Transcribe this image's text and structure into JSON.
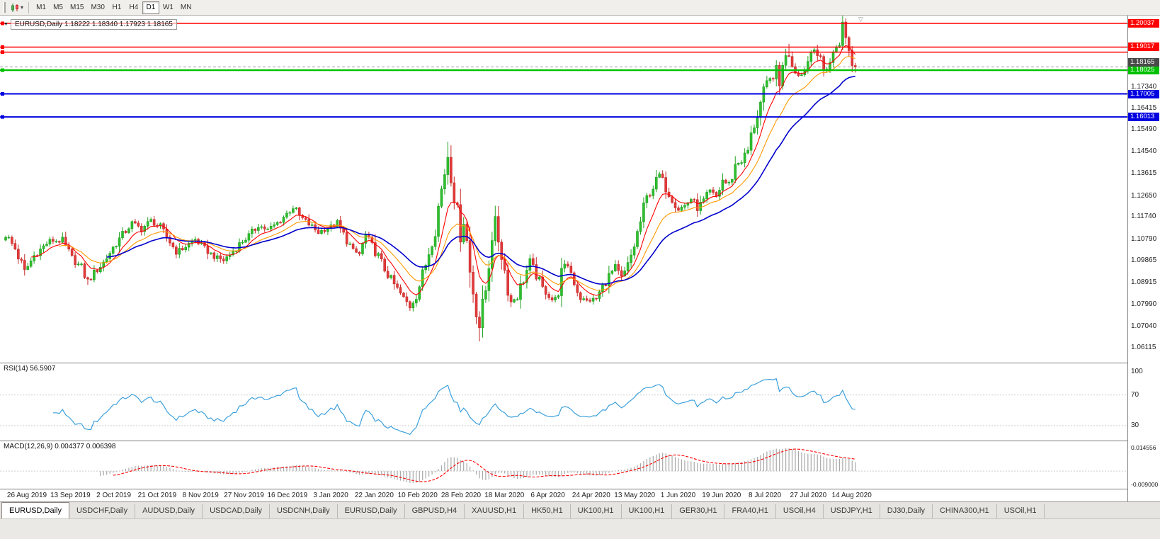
{
  "toolbar": {
    "periods": [
      {
        "label": "M1",
        "active": false
      },
      {
        "label": "M5",
        "active": false
      },
      {
        "label": "M15",
        "active": false
      },
      {
        "label": "M30",
        "active": false
      },
      {
        "label": "H1",
        "active": false
      },
      {
        "label": "H4",
        "active": false
      },
      {
        "label": "D1",
        "active": true
      },
      {
        "label": "W1",
        "active": false
      },
      {
        "label": "MN",
        "active": false
      }
    ]
  },
  "chart": {
    "title": "EURUSD,Daily 1.18222 1.18340 1.17923 1.18165"
  },
  "indicators": {
    "rsi_label": "RSI(14) 56.5907",
    "macd_label": "MACD(12,26,9) 0.004377 0.006398"
  },
  "price_axis": {
    "ticks": [
      "1.17340",
      "1.16415",
      "1.15490",
      "1.14540",
      "1.13615",
      "1.12650",
      "1.11740",
      "1.10790",
      "1.09865",
      "1.08915",
      "1.07990",
      "1.07040",
      "1.06115"
    ]
  },
  "tabbar": {
    "tabs": [
      {
        "label": "EURUSD,Daily",
        "active": true
      },
      {
        "label": "USDCHF,Daily",
        "active": false
      },
      {
        "label": "AUDUSD,Daily",
        "active": false
      },
      {
        "label": "USDCAD,Daily",
        "active": false
      },
      {
        "label": "USDCNH,Daily",
        "active": false
      },
      {
        "label": "EURUSD,Daily",
        "active": false
      },
      {
        "label": "GBPUSD,H4",
        "active": false
      },
      {
        "label": "XAUUSD,H1",
        "active": false
      },
      {
        "label": "HK50,H1",
        "active": false
      },
      {
        "label": "UK100,H1",
        "active": false
      },
      {
        "label": "UK100,H1",
        "active": false
      },
      {
        "label": "GER30,H1",
        "active": false
      },
      {
        "label": "FRA40,H1",
        "active": false
      },
      {
        "label": "USOil,H4",
        "active": false
      },
      {
        "label": "USDJPY,H1",
        "active": false
      },
      {
        "label": "DJ30,Daily",
        "active": false
      },
      {
        "label": "CHINA300,H1",
        "active": false
      },
      {
        "label": "USOil,H1",
        "active": false
      }
    ]
  },
  "chart_data": {
    "type": "candlestick",
    "symbol": "EURUSD",
    "timeframe": "Daily",
    "last_ohlc": {
      "open": 1.18222,
      "high": 1.1834,
      "low": 1.17923,
      "close": 1.18165
    },
    "current_price": 1.18165,
    "current_price_label": "1.18165",
    "y_range": [
      1.05447,
      1.20372
    ],
    "num_candles": 270,
    "x_labels": [
      "26 Aug 2019",
      "13 Sep 2019",
      "2 Oct 2019",
      "21 Oct 2019",
      "8 Nov 2019",
      "27 Nov 2019",
      "16 Dec 2019",
      "3 Jan 2020",
      "22 Jan 2020",
      "10 Feb 2020",
      "28 Feb 2020",
      "18 Mar 2020",
      "6 Apr 2020",
      "24 Apr 2020",
      "13 May 2020",
      "1 Jun 2020",
      "19 Jun 2020",
      "8 Jul 2020",
      "27 Jul 2020",
      "14 Aug 2020"
    ],
    "close_anchors": [
      [
        0,
        1.1095
      ],
      [
        3,
        1.1035
      ],
      [
        6,
        1.0935
      ],
      [
        9,
        1.1005
      ],
      [
        14,
        1.107
      ],
      [
        18,
        1.1065
      ],
      [
        21,
        1.0995
      ],
      [
        24,
        1.095
      ],
      [
        26,
        1.0895
      ],
      [
        28,
        1.093
      ],
      [
        31,
        1.0975
      ],
      [
        34,
        1.104
      ],
      [
        37,
        1.1095
      ],
      [
        40,
        1.1145
      ],
      [
        43,
        1.112
      ],
      [
        46,
        1.1155
      ],
      [
        49,
        1.1125
      ],
      [
        52,
        1.1065
      ],
      [
        54,
        1.102
      ],
      [
        56,
        1.1035
      ],
      [
        58,
        1.1055
      ],
      [
        60,
        1.1075
      ],
      [
        63,
        1.1035
      ],
      [
        66,
        1.1
      ],
      [
        69,
        1.0985
      ],
      [
        71,
        1.101
      ],
      [
        74,
        1.1055
      ],
      [
        77,
        1.109
      ],
      [
        80,
        1.1135
      ],
      [
        83,
        1.1115
      ],
      [
        86,
        1.1145
      ],
      [
        89,
        1.1185
      ],
      [
        91,
        1.1215
      ],
      [
        93,
        1.1175
      ],
      [
        96,
        1.114
      ],
      [
        99,
        1.1105
      ],
      [
        102,
        1.1125
      ],
      [
        105,
        1.114
      ],
      [
        107,
        1.1095
      ],
      [
        110,
        1.1025
      ],
      [
        112,
        1.101
      ],
      [
        114,
        1.109
      ],
      [
        116,
        1.1045
      ],
      [
        118,
        1.1
      ],
      [
        120,
        1.0945
      ],
      [
        123,
        1.088
      ],
      [
        126,
        1.082
      ],
      [
        128,
        1.0788
      ],
      [
        130,
        1.084
      ],
      [
        132,
        1.0915
      ],
      [
        134,
        1.1025
      ],
      [
        136,
        1.1135
      ],
      [
        138,
        1.129
      ],
      [
        140,
        1.1445
      ],
      [
        141,
        1.136
      ],
      [
        142,
        1.1285
      ],
      [
        143,
        1.118
      ],
      [
        144,
        1.1105
      ],
      [
        145,
        1.118
      ],
      [
        146,
        1.1065
      ],
      [
        147,
        1.0935
      ],
      [
        148,
        1.0855
      ],
      [
        149,
        1.078
      ],
      [
        150,
        1.0705
      ],
      [
        151,
        1.077
      ],
      [
        152,
        1.086
      ],
      [
        153,
        1.0985
      ],
      [
        154,
        1.109
      ],
      [
        155,
        1.1135
      ],
      [
        156,
        1.1075
      ],
      [
        157,
        1.102
      ],
      [
        158,
        1.094
      ],
      [
        160,
        1.0805
      ],
      [
        162,
        1.0835
      ],
      [
        164,
        1.0905
      ],
      [
        166,
        1.0975
      ],
      [
        168,
        1.092
      ],
      [
        170,
        1.0865
      ],
      [
        172,
        1.0835
      ],
      [
        174,
        1.0798
      ],
      [
        176,
        1.094
      ],
      [
        178,
        1.097
      ],
      [
        180,
        1.0895
      ],
      [
        182,
        1.082
      ],
      [
        184,
        1.081
      ],
      [
        187,
        1.082
      ],
      [
        189,
        1.087
      ],
      [
        191,
        1.092
      ],
      [
        193,
        1.095
      ],
      [
        195,
        1.0905
      ],
      [
        197,
        1.0955
      ],
      [
        199,
        1.105
      ],
      [
        201,
        1.115
      ],
      [
        203,
        1.1255
      ],
      [
        205,
        1.13
      ],
      [
        207,
        1.135
      ],
      [
        209,
        1.1295
      ],
      [
        211,
        1.125
      ],
      [
        213,
        1.1205
      ],
      [
        215,
        1.122
      ],
      [
        217,
        1.125
      ],
      [
        219,
        1.121
      ],
      [
        221,
        1.124
      ],
      [
        223,
        1.128
      ],
      [
        225,
        1.1255
      ],
      [
        227,
        1.133
      ],
      [
        229,
        1.1305
      ],
      [
        231,
        1.1395
      ],
      [
        233,
        1.1415
      ],
      [
        235,
        1.1455
      ],
      [
        237,
        1.157
      ],
      [
        239,
        1.166
      ],
      [
        241,
        1.1745
      ],
      [
        243,
        1.1775
      ],
      [
        244,
        1.1785
      ],
      [
        245,
        1.1725
      ],
      [
        246,
        1.1835
      ],
      [
        248,
        1.1878
      ],
      [
        250,
        1.1795
      ],
      [
        252,
        1.1782
      ],
      [
        254,
        1.1842
      ],
      [
        256,
        1.1928
      ],
      [
        257,
        1.1872
      ],
      [
        259,
        1.1798
      ],
      [
        261,
        1.1838
      ],
      [
        263,
        1.1905
      ],
      [
        264,
        1.1935
      ],
      [
        265,
        1.1992
      ],
      [
        266,
        1.1938
      ],
      [
        267,
        1.1912
      ],
      [
        268,
        1.1822
      ],
      [
        269,
        1.18165
      ]
    ],
    "forced_points": {
      "26": {
        "low": 1.0879
      },
      "128": {
        "low": 1.0778
      },
      "140": {
        "high": 1.1495
      },
      "150": {
        "low": 1.0636
      },
      "248": {
        "high": 1.1916
      },
      "265": {
        "high": 1.2005
      }
    },
    "horizontal_lines": [
      {
        "price": 1.20037,
        "color": "#FF0000",
        "width": 1.5,
        "label": "1.20037"
      },
      {
        "price": 1.19017,
        "color": "#FF0000",
        "width": 1.5,
        "label": "1.19017"
      },
      {
        "price": 1.188,
        "color": "#FF0000",
        "width": 1.5,
        "label": null
      },
      {
        "price": 1.18025,
        "color": "#00C000",
        "width": 2.4,
        "label": "1.18025"
      },
      {
        "price": 1.17005,
        "color": "#0000E0",
        "width": 2,
        "label": "1.17005"
      },
      {
        "price": 1.16013,
        "color": "#0000E0",
        "width": 2,
        "label": "1.16013"
      }
    ],
    "moving_averages": [
      {
        "period": 8,
        "color": "#FF0000"
      },
      {
        "period": 17,
        "color": "#FF9900"
      },
      {
        "period": 32,
        "color": "#0000CC"
      }
    ],
    "rsi": {
      "period": 14,
      "value": "56.5907",
      "levels": [
        "100",
        "70",
        "30"
      ],
      "color": "#3CA0DC"
    },
    "macd": {
      "params": "12,26,9",
      "macd_value": "0.004377",
      "signal_value": "0.006398",
      "scale_max": "0.014556",
      "scale_min": "-0.009000",
      "hist_color": "#A8A8A8",
      "signal_color": "#FF0000"
    }
  }
}
